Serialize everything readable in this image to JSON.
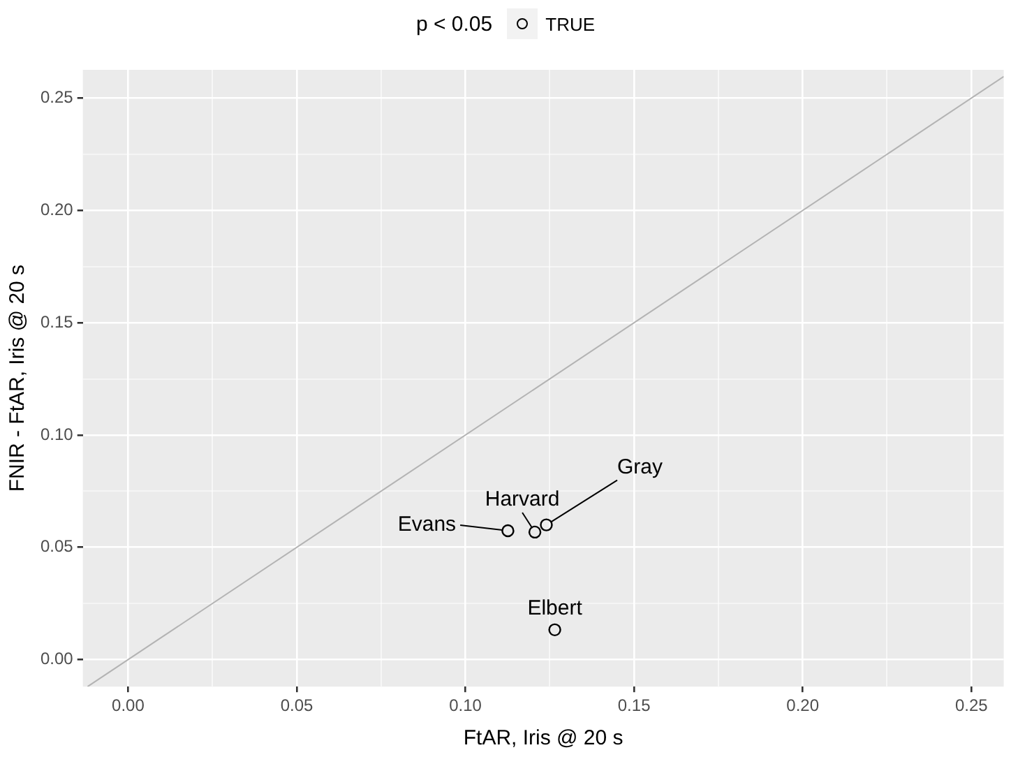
{
  "chart_data": {
    "type": "scatter",
    "xlabel": "FtAR, Iris @ 20 s",
    "ylabel": "FNIR - FtAR, Iris @ 20 s",
    "legend_title": "p < 0.05",
    "legend": "top",
    "grid": true,
    "xlim": [
      -0.0134,
      0.2596
    ],
    "ylim": [
      -0.012,
      0.2626
    ],
    "xticks": [
      {
        "value": 0,
        "label": "0.00"
      },
      {
        "value": 0.025,
        "label": null
      },
      {
        "value": 0.05,
        "label": "0.05"
      },
      {
        "value": 0.075,
        "label": null
      },
      {
        "value": 0.1,
        "label": "0.10"
      },
      {
        "value": 0.125,
        "label": null
      },
      {
        "value": 0.15,
        "label": "0.15"
      },
      {
        "value": 0.175,
        "label": null
      },
      {
        "value": 0.2,
        "label": "0.20"
      },
      {
        "value": 0.225,
        "label": null
      },
      {
        "value": 0.25,
        "label": "0.25"
      }
    ],
    "yticks": [
      {
        "value": 0,
        "label": "0.00"
      },
      {
        "value": 0.025,
        "label": null
      },
      {
        "value": 0.05,
        "label": "0.05"
      },
      {
        "value": 0.075,
        "label": null
      },
      {
        "value": 0.1,
        "label": "0.10"
      },
      {
        "value": 0.125,
        "label": null
      },
      {
        "value": 0.15,
        "label": "0.15"
      },
      {
        "value": 0.175,
        "label": null
      },
      {
        "value": 0.2,
        "label": "0.20"
      },
      {
        "value": 0.225,
        "label": null
      },
      {
        "value": 0.25,
        "label": "0.25"
      }
    ],
    "series": [
      {
        "name": "TRUE",
        "marker": "circle",
        "color": "#000000",
        "x": [
          0.1126,
          0.1206,
          0.124,
          0.1265
        ],
        "values": [
          0.0574,
          0.0568,
          0.06,
          0.0133
        ]
      },
      {
        "type": "line",
        "marker": "none",
        "color": "#b3b3b3",
        "x": [
          -0.012,
          0.2596
        ],
        "values": [
          -0.012,
          0.2596
        ]
      }
    ],
    "annotations": [
      {
        "text": "Evans",
        "x": 0.1126,
        "y": 0.0574
      },
      {
        "text": "Harvard",
        "x": 0.1206,
        "y": 0.0568
      },
      {
        "text": "Gray",
        "x": 0.124,
        "y": 0.06
      },
      {
        "text": "Elbert",
        "x": 0.1265,
        "y": 0.0133
      }
    ]
  }
}
